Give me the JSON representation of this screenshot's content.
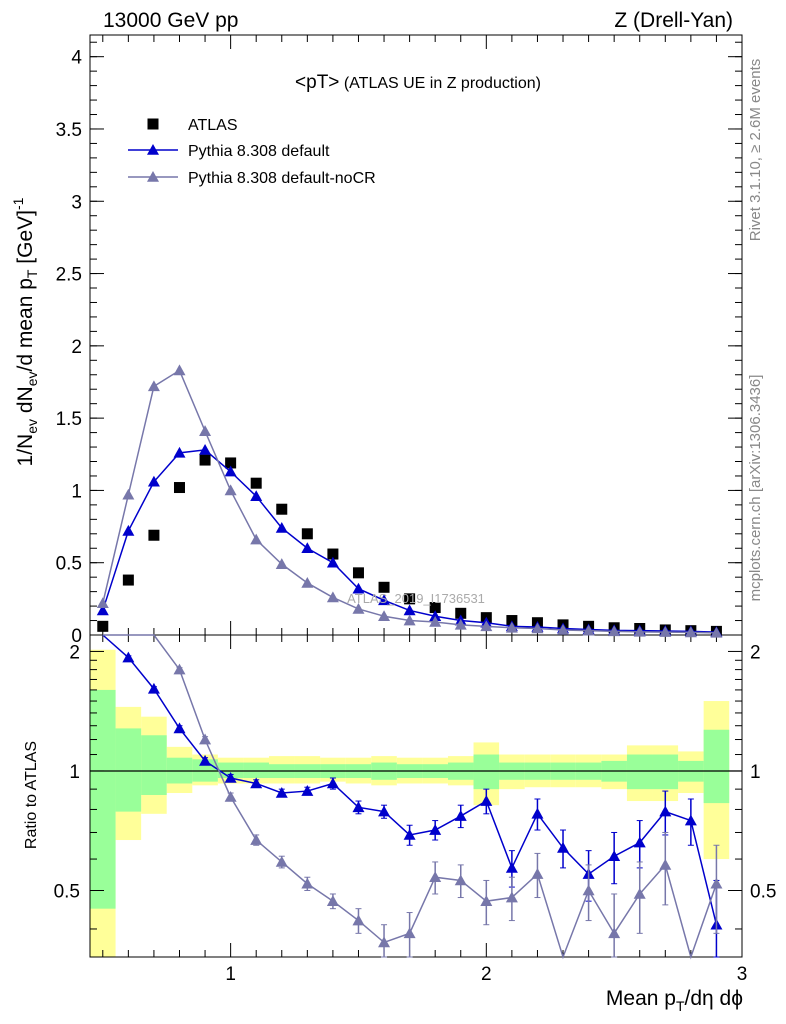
{
  "header": {
    "left": "13000 GeV pp",
    "right": "Z (Drell-Yan)"
  },
  "side_labels": {
    "rivet": "Rivet 3.1.10, ≥ 2.6M events",
    "mcplots": "mcplots.cern.ch [arXiv:1306.3436]"
  },
  "chart_data": {
    "type": "scatter",
    "title": "<pT> (ATLAS UE in Z production)",
    "title_main": "<pT>",
    "title_rest": " (ATLAS UE in Z production)",
    "watermark": "ATLAS_2019_I1736531",
    "xlabel": "Mean p_T/dη dϕ",
    "ylabel": "1/N_ev dN_ev/d mean p_T [GeV]^-1",
    "ratio_ylabel": "Ratio to ATLAS",
    "xlim": [
      0.45,
      3.0
    ],
    "ylim": [
      0,
      4.15
    ],
    "ratio_ylim": [
      0.34,
      2.2
    ],
    "x_ticks": [
      "1",
      "2",
      "3"
    ],
    "y_ticks": [
      "0",
      "0.5",
      "1",
      "1.5",
      "2",
      "2.5",
      "3",
      "3.5",
      "4"
    ],
    "ratio_ticks": [
      "0.5",
      "1",
      "2"
    ],
    "legend_position": "top-left",
    "x": [
      0.5,
      0.6,
      0.7,
      0.8,
      0.9,
      1.0,
      1.1,
      1.2,
      1.3,
      1.4,
      1.5,
      1.6,
      1.7,
      1.8,
      1.9,
      2.0,
      2.1,
      2.2,
      2.3,
      2.4,
      2.5,
      2.6,
      2.7,
      2.8,
      2.9
    ],
    "bin_edges": [
      0.45,
      0.55,
      0.65,
      0.75,
      0.85,
      0.95,
      1.05,
      1.15,
      1.25,
      1.35,
      1.45,
      1.55,
      1.65,
      1.75,
      1.85,
      1.95,
      2.05,
      2.15,
      2.25,
      2.35,
      2.45,
      2.55,
      2.65,
      2.75,
      2.85,
      2.95
    ],
    "series": [
      {
        "name": "ATLAS",
        "color": "#000000",
        "marker": "square",
        "values": [
          0.06,
          0.38,
          0.69,
          1.02,
          1.21,
          1.19,
          1.05,
          0.87,
          0.7,
          0.56,
          0.43,
          0.33,
          0.25,
          0.19,
          0.15,
          0.12,
          0.1,
          0.085,
          0.07,
          0.06,
          0.05,
          0.045,
          0.035,
          0.03,
          0.025
        ]
      },
      {
        "name": "Pythia 8.308 default",
        "color": "#0000cc",
        "marker": "triangle",
        "values": [
          0.17,
          0.72,
          1.06,
          1.26,
          1.28,
          1.13,
          0.96,
          0.74,
          0.6,
          0.5,
          0.32,
          0.24,
          0.17,
          0.13,
          0.1,
          0.085,
          0.06,
          0.055,
          0.045,
          0.038,
          0.032,
          0.03,
          0.028,
          0.025,
          0.02
        ],
        "ratio": [
          2.85,
          1.93,
          1.61,
          1.28,
          1.06,
          0.96,
          0.93,
          0.88,
          0.89,
          0.93,
          0.81,
          0.79,
          0.69,
          0.71,
          0.77,
          0.84,
          0.57,
          0.78,
          0.64,
          0.55,
          0.61,
          0.66,
          0.79,
          0.75,
          0.41
        ],
        "ratio_err": [
          0.02,
          0.02,
          0.02,
          0.02,
          0.02,
          0.02,
          0.02,
          0.02,
          0.02,
          0.03,
          0.03,
          0.03,
          0.04,
          0.04,
          0.05,
          0.06,
          0.06,
          0.07,
          0.07,
          0.08,
          0.09,
          0.09,
          0.1,
          0.1,
          0.12
        ]
      },
      {
        "name": "Pythia 8.308 default-noCR",
        "color": "#7777aa",
        "marker": "triangle",
        "values": [
          0.22,
          0.97,
          1.72,
          1.83,
          1.41,
          1.0,
          0.66,
          0.49,
          0.36,
          0.26,
          0.18,
          0.13,
          0.1,
          0.09,
          0.07,
          0.06,
          0.05,
          0.045,
          0.035,
          0.03,
          0.025,
          0.022,
          0.02,
          0.018,
          0.015
        ],
        "ratio": [
          3.5,
          2.55,
          2.5,
          1.8,
          1.2,
          0.86,
          0.67,
          0.59,
          0.52,
          0.47,
          0.42,
          0.37,
          0.39,
          0.54,
          0.53,
          0.47,
          0.48,
          0.55,
          0.3,
          0.5,
          0.39,
          0.49,
          0.58,
          0.29,
          0.52
        ],
        "ratio_err": [
          0.02,
          0.02,
          0.02,
          0.02,
          0.02,
          0.02,
          0.02,
          0.02,
          0.02,
          0.02,
          0.03,
          0.04,
          0.05,
          0.05,
          0.05,
          0.06,
          0.06,
          0.07,
          0.08,
          0.08,
          0.1,
          0.1,
          0.12,
          0.12,
          0.13
        ]
      }
    ],
    "value_err": [
      0.01,
      0.02,
      0.02,
      0.025,
      0.025,
      0.02,
      0.02,
      0.02,
      0.015,
      0.015,
      0.01,
      0.01,
      0.01,
      0.01,
      0.01,
      0.01,
      0.01,
      0.01,
      0.01,
      0.01,
      0.01,
      0.01,
      0.01,
      0.01,
      0.01
    ],
    "band_yellow": [
      [
        0.3,
        2.02
      ],
      [
        0.67,
        1.45
      ],
      [
        0.78,
        1.37
      ],
      [
        0.88,
        1.15
      ],
      [
        0.92,
        1.1
      ],
      [
        0.93,
        1.08
      ],
      [
        0.93,
        1.08
      ],
      [
        0.93,
        1.09
      ],
      [
        0.93,
        1.09
      ],
      [
        0.94,
        1.08
      ],
      [
        0.93,
        1.08
      ],
      [
        0.92,
        1.09
      ],
      [
        0.93,
        1.08
      ],
      [
        0.93,
        1.08
      ],
      [
        0.92,
        1.09
      ],
      [
        0.82,
        1.18
      ],
      [
        0.9,
        1.1
      ],
      [
        0.91,
        1.1
      ],
      [
        0.91,
        1.1
      ],
      [
        0.91,
        1.1
      ],
      [
        0.9,
        1.1
      ],
      [
        0.84,
        1.16
      ],
      [
        0.84,
        1.16
      ],
      [
        0.88,
        1.12
      ],
      [
        0.6,
        1.5
      ]
    ],
    "band_green": [
      [
        0.45,
        1.6
      ],
      [
        0.79,
        1.28
      ],
      [
        0.87,
        1.23
      ],
      [
        0.93,
        1.08
      ],
      [
        0.94,
        1.07
      ],
      [
        0.96,
        1.05
      ],
      [
        0.96,
        1.05
      ],
      [
        0.96,
        1.04
      ],
      [
        0.96,
        1.04
      ],
      [
        0.96,
        1.04
      ],
      [
        0.96,
        1.04
      ],
      [
        0.95,
        1.05
      ],
      [
        0.96,
        1.04
      ],
      [
        0.96,
        1.04
      ],
      [
        0.95,
        1.05
      ],
      [
        0.9,
        1.1
      ],
      [
        0.95,
        1.05
      ],
      [
        0.95,
        1.05
      ],
      [
        0.95,
        1.05
      ],
      [
        0.95,
        1.05
      ],
      [
        0.94,
        1.06
      ],
      [
        0.9,
        1.1
      ],
      [
        0.9,
        1.1
      ],
      [
        0.94,
        1.06
      ],
      [
        0.83,
        1.27
      ]
    ]
  }
}
